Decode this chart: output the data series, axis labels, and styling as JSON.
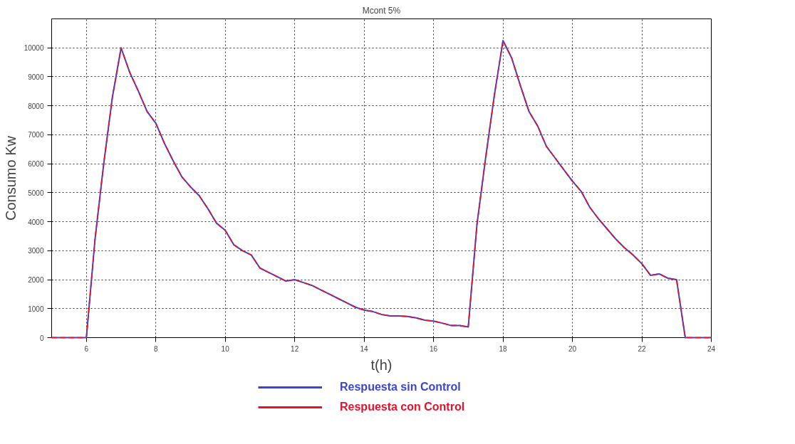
{
  "chart_data": {
    "type": "line",
    "title": "Mcont 5%",
    "xlabel": "t(h)",
    "ylabel": "Consumo Kw",
    "x": [
      5,
      6,
      6.25,
      6.5,
      6.75,
      7,
      7.25,
      7.5,
      7.75,
      8,
      8.25,
      8.5,
      8.75,
      9,
      9.25,
      9.5,
      9.75,
      10,
      10.25,
      10.5,
      10.75,
      11,
      11.25,
      11.5,
      11.75,
      12,
      12.25,
      12.5,
      12.75,
      13,
      13.25,
      13.5,
      13.75,
      14,
      14.25,
      14.5,
      14.75,
      15,
      15.25,
      15.5,
      15.75,
      16,
      16.25,
      16.5,
      16.75,
      17,
      17.25,
      17.5,
      17.75,
      18,
      18.25,
      18.5,
      18.75,
      19,
      19.25,
      19.5,
      19.75,
      20,
      20.25,
      20.5,
      20.75,
      21,
      21.25,
      21.5,
      21.75,
      22,
      22.25,
      22.5,
      22.75,
      23,
      23.25,
      24
    ],
    "series": [
      {
        "name": "Respuesta sin Control",
        "color": "#3b44d8",
        "line_style": "solid",
        "values": [
          0,
          0,
          3400,
          6000,
          8300,
          10000,
          9150,
          8500,
          7800,
          7400,
          6700,
          6100,
          5550,
          5200,
          4900,
          4450,
          3950,
          3700,
          3200,
          3000,
          2850,
          2400,
          2250,
          2100,
          1950,
          2000,
          1900,
          1800,
          1650,
          1500,
          1350,
          1200,
          1050,
          950,
          900,
          800,
          750,
          750,
          730,
          680,
          600,
          570,
          500,
          420,
          420,
          370,
          3900,
          6200,
          8350,
          10250,
          9650,
          8700,
          7800,
          7300,
          6600,
          6200,
          5800,
          5400,
          5050,
          4500,
          4100,
          3750,
          3400,
          3100,
          2850,
          2550,
          2150,
          2200,
          2050,
          2000,
          0,
          0
        ]
      },
      {
        "name": "Respuesta con Control",
        "color": "#e8102a",
        "line_style": "dashed",
        "values": [
          0,
          0,
          3400,
          6000,
          8300,
          10000,
          9150,
          8500,
          7800,
          7400,
          6700,
          6100,
          5550,
          5200,
          4900,
          4450,
          3950,
          3700,
          3200,
          3000,
          2850,
          2400,
          2250,
          2100,
          1950,
          2000,
          1900,
          1800,
          1650,
          1500,
          1350,
          1200,
          1050,
          950,
          900,
          800,
          750,
          750,
          730,
          680,
          600,
          570,
          500,
          420,
          420,
          370,
          3900,
          6200,
          8350,
          10250,
          9650,
          8700,
          7800,
          7300,
          6600,
          6200,
          5800,
          5400,
          5050,
          4500,
          4100,
          3750,
          3400,
          3100,
          2850,
          2550,
          2150,
          2200,
          2050,
          2000,
          0,
          0
        ]
      }
    ],
    "xlim": [
      5,
      24
    ],
    "ylim": [
      0,
      11000
    ],
    "xticks": [
      6,
      8,
      10,
      12,
      14,
      16,
      18,
      20,
      22,
      24
    ],
    "yticks": [
      0,
      1000,
      2000,
      3000,
      4000,
      5000,
      6000,
      7000,
      8000,
      9000,
      10000
    ],
    "grid": true,
    "legend": "bottom"
  }
}
